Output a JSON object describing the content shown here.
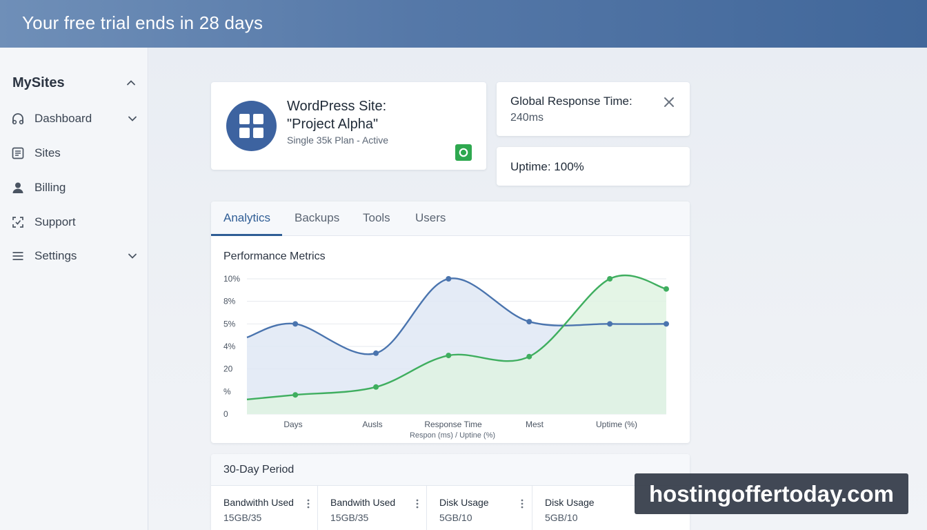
{
  "banner": {
    "text": "Your free trial ends in 28 days"
  },
  "sidebar": {
    "title": "MySites",
    "items": [
      {
        "label": "Dashboard",
        "icon": "dashboard-icon",
        "has_chevron": true
      },
      {
        "label": "Sites",
        "icon": "sites-icon",
        "has_chevron": false
      },
      {
        "label": "Billing",
        "icon": "user-icon",
        "has_chevron": false
      },
      {
        "label": "Support",
        "icon": "support-icon",
        "has_chevron": false
      },
      {
        "label": "Settings",
        "icon": "menu-icon",
        "has_chevron": true
      }
    ]
  },
  "site_card": {
    "title_line1": "WordPress Site:",
    "title_line2": "\"Project Alpha\"",
    "subtitle": "Single 35k Plan - Active",
    "status_color": "#2ea84f"
  },
  "response_card": {
    "label": "Global Response Time:",
    "value": "240ms"
  },
  "uptime_card": {
    "label": "Uptime: 100%"
  },
  "tabs": [
    {
      "label": "Analytics",
      "active": true
    },
    {
      "label": "Backups",
      "active": false
    },
    {
      "label": "Tools",
      "active": false
    },
    {
      "label": "Users",
      "active": false
    }
  ],
  "chart_data": {
    "type": "area",
    "title": "Performance Metrics",
    "y_ticks": [
      "10%",
      "8%",
      "5%",
      "4%",
      "20",
      "%",
      "0"
    ],
    "x_ticks": [
      "Days",
      "Ausls",
      "Response Time",
      "Mest",
      "Uptime (%)"
    ],
    "xlabel": "Respon (ms) / Uptine (%)",
    "grid": true,
    "series": [
      {
        "color": "#4a74ae",
        "fill": "#dfe7f4",
        "points": [
          [
            0,
            3.4
          ],
          [
            0.6,
            4.0
          ],
          [
            1.6,
            2.7
          ],
          [
            2.5,
            6.0
          ],
          [
            3.5,
            4.1
          ],
          [
            4.5,
            4.0
          ],
          [
            5.2,
            4.0
          ]
        ]
      },
      {
        "color": "#3fae5f",
        "fill": "#dff3e2",
        "points": [
          [
            0,
            0.65
          ],
          [
            0.6,
            0.85
          ],
          [
            1.6,
            1.2
          ],
          [
            2.5,
            2.6
          ],
          [
            3.5,
            2.55
          ],
          [
            4.5,
            6.0
          ],
          [
            5.2,
            5.55
          ]
        ]
      }
    ]
  },
  "period": {
    "title": "30-Day Period",
    "metrics": [
      {
        "label": "Bandwithh Used",
        "value": "15GB/35"
      },
      {
        "label": "Bandwith Used",
        "value": "15GB/35"
      },
      {
        "label": "Disk Usage",
        "value": "5GB/10"
      },
      {
        "label": "Disk Usage",
        "value": "5GB/10"
      }
    ]
  },
  "watermark": {
    "text": "hostingoffertoday.com"
  },
  "colors": {
    "accent": "#2f5d95",
    "banner": "#5578a8"
  }
}
